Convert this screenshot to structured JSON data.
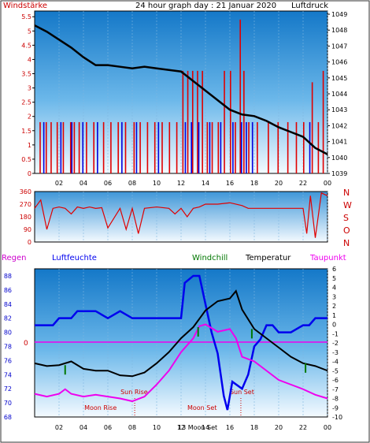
{
  "header": {
    "title": "24 hour graph day : 21 Januar 2020",
    "left_label": "Windstärke",
    "right_label": "Luftdruck"
  },
  "colors": {
    "wind": "#e00000",
    "gust": "#0000dd",
    "pressure": "#000000",
    "temperature": "#000000",
    "humidity": "#0000ee",
    "dewpoint": "#ee00ee",
    "windchill": "#007700",
    "rain": "#cc00cc",
    "direction": "#e00000",
    "label_red": "#cc0000",
    "moon": "#cc0000"
  },
  "chart_data": [
    {
      "type": "bar",
      "name": "wind-pressure",
      "title": "24 hour graph day : 21 Januar 2020",
      "x_tick_labels": [
        "02",
        "04",
        "06",
        "08",
        "10",
        "12",
        "14",
        "16",
        "18",
        "20",
        "22",
        "00"
      ],
      "x_tick_hours": [
        2,
        4,
        6,
        8,
        10,
        12,
        14,
        16,
        18,
        20,
        22,
        24
      ],
      "left_axis": {
        "label": "Windstärke",
        "ticks": [
          "0",
          "0.5",
          "1",
          "1.5",
          "2",
          "2.5",
          "3",
          "3.5",
          "4",
          "4.5",
          "5",
          "5.5"
        ],
        "range": [
          0,
          5.7
        ]
      },
      "right_axis": {
        "label": "Luftdruck",
        "ticks": [
          "1039",
          "1040",
          "1041",
          "1042",
          "1043",
          "1044",
          "1045",
          "1046",
          "1047",
          "1048",
          "1049"
        ],
        "range": [
          1039,
          1049.2
        ]
      },
      "series": [
        {
          "name": "Windstärke",
          "kind": "bars",
          "hours": [
            0.4,
            0.9,
            1.3,
            1.8,
            2.3,
            2.9,
            3.2,
            3.6,
            4.2,
            4.8,
            5.6,
            6.2,
            6.8,
            7.4,
            8.1,
            8.6,
            9.2,
            9.8,
            10.4,
            11.0,
            11.6,
            12.1,
            12.5,
            12.9,
            13.3,
            13.7,
            14.1,
            14.5,
            15.0,
            15.5,
            16.0,
            16.4,
            16.8,
            17.1,
            17.5,
            18.2,
            19.1,
            19.9,
            20.7,
            21.4,
            22.0,
            22.7,
            23.2,
            23.6
          ],
          "values": [
            1.8,
            1.8,
            1.8,
            1.8,
            1.8,
            1.8,
            1.8,
            1.8,
            1.8,
            1.8,
            1.8,
            1.8,
            1.8,
            1.8,
            1.8,
            1.8,
            1.8,
            1.8,
            1.8,
            1.8,
            1.8,
            3.6,
            3.6,
            3.6,
            3.6,
            3.6,
            1.8,
            1.8,
            1.8,
            3.6,
            3.6,
            1.8,
            5.4,
            3.6,
            1.8,
            1.8,
            1.8,
            1.8,
            1.8,
            1.8,
            1.8,
            3.2,
            1.8,
            3.6
          ]
        },
        {
          "name": "Böen",
          "kind": "bars",
          "hours": [
            0.7,
            2.1,
            3.0,
            3.9,
            5.1,
            7.1,
            8.3,
            10.1,
            12.3,
            12.8,
            13.4,
            14.3,
            15.2,
            16.2,
            16.9,
            17.3,
            17.8,
            22.5
          ],
          "values": [
            1.8,
            1.8,
            1.8,
            1.8,
            1.8,
            1.8,
            1.8,
            1.8,
            1.8,
            1.8,
            1.8,
            1.8,
            1.8,
            1.8,
            1.8,
            1.8,
            1.8,
            1.8
          ]
        },
        {
          "name": "Luftdruck",
          "kind": "line",
          "hours": [
            0,
            1,
            2,
            3,
            4,
            5,
            6,
            7,
            8,
            9,
            10,
            11,
            12,
            13,
            14,
            15,
            16,
            17,
            18,
            19,
            20,
            21,
            22,
            23,
            24
          ],
          "values": [
            1048.3,
            1047.9,
            1047.4,
            1046.9,
            1046.3,
            1045.8,
            1045.8,
            1045.7,
            1045.6,
            1045.7,
            1045.6,
            1045.5,
            1045.4,
            1044.8,
            1044.2,
            1043.6,
            1043.0,
            1042.7,
            1042.6,
            1042.3,
            1041.9,
            1041.6,
            1041.3,
            1040.6,
            1040.2
          ]
        }
      ]
    },
    {
      "type": "line",
      "name": "wind-direction",
      "x_tick_hours": [
        2,
        4,
        6,
        8,
        10,
        12,
        14,
        16,
        18,
        20,
        22,
        24
      ],
      "left_axis": {
        "ticks": [
          "0",
          "90",
          "180",
          "270",
          "360"
        ],
        "range": [
          0,
          360
        ]
      },
      "right_labels": [
        "N",
        "W",
        "S",
        "O",
        "N"
      ],
      "series": [
        {
          "name": "Windrichtung",
          "hours": [
            0,
            0.5,
            1.0,
            1.5,
            2.0,
            2.5,
            3.0,
            3.5,
            4.0,
            4.5,
            5.0,
            5.5,
            6.0,
            7.0,
            7.5,
            8.0,
            8.5,
            9.0,
            10.0,
            11.0,
            11.5,
            12.0,
            12.5,
            13.0,
            13.5,
            14.0,
            15.0,
            16.0,
            17.0,
            17.5,
            18.0,
            19.0,
            20.0,
            21.0,
            22.0,
            22.3,
            22.6,
            23.0,
            23.5,
            24.0
          ],
          "values": [
            240,
            300,
            90,
            240,
            250,
            240,
            200,
            250,
            240,
            250,
            240,
            245,
            100,
            240,
            90,
            240,
            60,
            240,
            250,
            240,
            200,
            240,
            180,
            240,
            250,
            270,
            270,
            280,
            260,
            240,
            240,
            240,
            240,
            240,
            240,
            60,
            330,
            30,
            350,
            330
          ]
        }
      ]
    },
    {
      "type": "line",
      "name": "temperature-humidity",
      "x_tick_labels": [
        "02",
        "04",
        "06",
        "08",
        "10",
        "12",
        "14",
        "16",
        "18",
        "20",
        "22",
        "00"
      ],
      "x_tick_hours": [
        2,
        4,
        6,
        8,
        10,
        12,
        14,
        16,
        18,
        20,
        22,
        24
      ],
      "top_labels": {
        "rain": "Regen",
        "humidity": "Luftfeuchte",
        "windchill": "Windchill",
        "temperature": "Temperatur",
        "dewpoint": "Taupunkt"
      },
      "left_axis": {
        "label": "Luftfeuchte",
        "ticks": [
          "68",
          "70",
          "72",
          "74",
          "76",
          "78",
          "80",
          "82",
          "84",
          "86",
          "88"
        ],
        "range": [
          68,
          89
        ]
      },
      "right_axis": {
        "label": "Temperatur",
        "ticks": [
          "-10",
          "-9",
          "-8",
          "-7",
          "-6",
          "-5",
          "-4",
          "-3",
          "-2",
          "-1",
          "0",
          "1",
          "2",
          "3",
          "4",
          "5",
          "6"
        ],
        "range": [
          -10,
          6
        ]
      },
      "rain_axis_label": "0",
      "events": [
        {
          "label": "Sun Rise",
          "hour": 8.2
        },
        {
          "label": "Sun Set",
          "hour": 16.9
        },
        {
          "label": "Moon Rise",
          "hour": 8.2
        },
        {
          "label": "Moon Set",
          "hour": 16.9
        }
      ],
      "extra_labels": [
        "13",
        "Moon Set"
      ],
      "series": [
        {
          "name": "Luftfeuchte",
          "hours": [
            0,
            1.5,
            2.0,
            3.0,
            3.5,
            5.0,
            6.0,
            7.0,
            8.0,
            10.0,
            11.0,
            12.0,
            12.3,
            13.0,
            13.5,
            14.0,
            14.5,
            15.0,
            15.5,
            15.8,
            16.2,
            17.0,
            17.5,
            18.0,
            18.5,
            19.0,
            19.5,
            20.0,
            21.0,
            22.0,
            22.5,
            23.0,
            24.0
          ],
          "values": [
            81,
            81,
            82,
            82,
            83,
            83,
            82,
            83,
            82,
            82,
            82,
            82,
            87,
            88,
            88,
            84,
            80,
            77,
            71,
            69,
            73,
            72,
            74,
            78,
            79,
            81,
            81,
            80,
            80,
            81,
            81,
            82,
            82
          ]
        },
        {
          "name": "Temperatur",
          "hours": [
            0,
            1,
            2,
            3,
            4,
            5,
            6,
            7,
            8,
            9,
            10,
            11,
            12,
            13,
            14,
            15,
            16,
            16.5,
            17,
            18,
            19,
            20,
            21,
            22,
            23,
            24
          ],
          "values": [
            -4.2,
            -4.5,
            -4.4,
            -4.0,
            -4.8,
            -5.0,
            -5.0,
            -5.5,
            -5.6,
            -5.2,
            -4.2,
            -3.0,
            -1.5,
            -0.3,
            1.5,
            2.5,
            2.8,
            3.6,
            1.6,
            -0.5,
            -1.5,
            -2.5,
            -3.5,
            -4.2,
            -4.5,
            -5.0
          ]
        },
        {
          "name": "Taupunkt",
          "hours": [
            0,
            1,
            2,
            2.5,
            3,
            4,
            5,
            6,
            7,
            8,
            9,
            10,
            11,
            12,
            13,
            13.5,
            14,
            15,
            16,
            16.5,
            17,
            18,
            19,
            20,
            21,
            22,
            23,
            24
          ],
          "values": [
            -7.5,
            -7.8,
            -7.5,
            -7.0,
            -7.5,
            -7.8,
            -7.6,
            -7.8,
            -8.0,
            -8.3,
            -7.8,
            -6.5,
            -5.0,
            -3.0,
            -1.5,
            -0.2,
            0.0,
            -0.8,
            -0.5,
            -1.5,
            -3.5,
            -4.0,
            -5.0,
            -6.0,
            -6.5,
            -7.0,
            -7.6,
            -8.0
          ]
        }
      ]
    }
  ]
}
